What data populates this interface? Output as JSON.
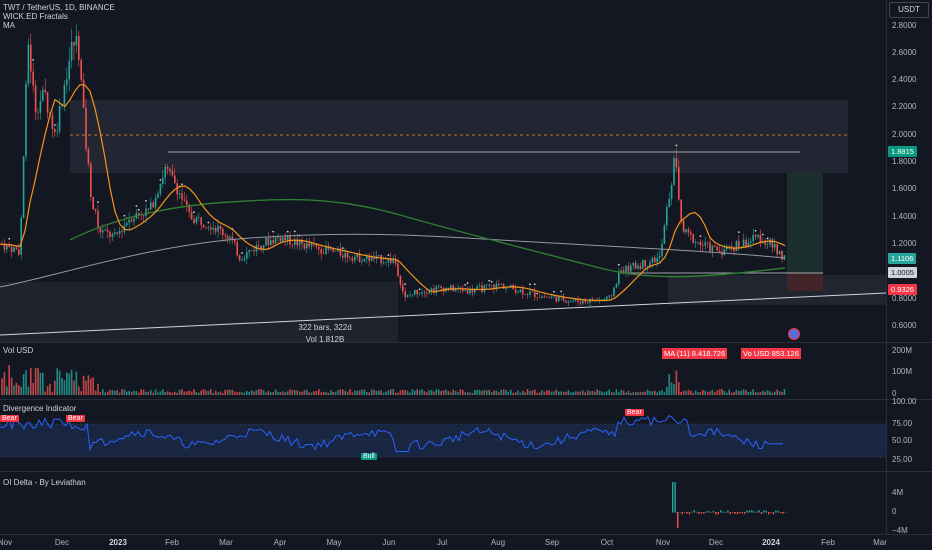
{
  "main": {
    "title": "TWT / TetherUS, 1D, BINANCE",
    "indicator1": "WICK.ED Fractals",
    "indicator2": "MA",
    "currency": "USDT",
    "price_ticks": [
      "2.8000",
      "2.6000",
      "2.4000",
      "2.2000",
      "2.0000",
      "1.8000",
      "1.6000",
      "1.4000",
      "1.2000",
      "1.0000",
      "0.8000",
      "0.6000"
    ],
    "tags": {
      "high": "1.8815",
      "current": "1.1106",
      "mid": "1.0005",
      "low": "0.9326"
    },
    "measure": {
      "bars": "322 bars, 322d",
      "vol": "Vol 1.812B"
    }
  },
  "volume": {
    "label": "Vol USD",
    "ticks": [
      "200M",
      "100M",
      "0"
    ],
    "ma_box": "MA (11) 8.418.726",
    "vol_box": "Vo USD 853.126"
  },
  "divergence": {
    "label": "Divergence Indicator",
    "ticks": [
      "100.00",
      "75.00",
      "50.00",
      "25.00"
    ],
    "signals": [
      {
        "text": "Bear",
        "color": "#f23645"
      },
      {
        "text": "Bear",
        "color": "#f23645"
      },
      {
        "text": "Bull",
        "color": "#089981"
      },
      {
        "text": "Bear",
        "color": "#f23645"
      }
    ]
  },
  "oi": {
    "label": "OI Delta - By Leviathan",
    "ticks": [
      "4M",
      "0",
      "−4M"
    ]
  },
  "time_axis": [
    "Nov",
    "Dec",
    "2023",
    "Feb",
    "Mar",
    "Apr",
    "May",
    "Jun",
    "Jul",
    "Aug",
    "Sep",
    "Oct",
    "Nov",
    "Dec",
    "2024",
    "Feb",
    "Mar"
  ],
  "colors": {
    "up": "#26a69a",
    "down": "#ef5350",
    "ma_fast": "#f7931a",
    "ma_slow": "#2e7d32",
    "rsi": "#2962ff"
  }
}
